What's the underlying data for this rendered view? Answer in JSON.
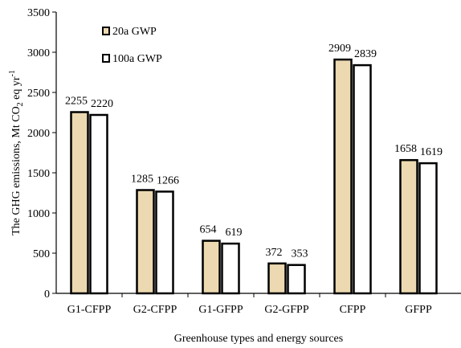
{
  "chart_data": {
    "type": "bar",
    "categories": [
      "G1-CFPP",
      "G2-CFPP",
      "G1-GFPP",
      "G2-GFPP",
      "CFPP",
      "GFPP"
    ],
    "series": [
      {
        "name": "20a GWP",
        "values": [
          2255,
          1285,
          654,
          372,
          2909,
          1658
        ],
        "color": "#ecd9b1"
      },
      {
        "name": "100a GWP",
        "values": [
          2220,
          1266,
          619,
          353,
          2839,
          1619
        ],
        "color": "#ffffff"
      }
    ],
    "data_labels": [
      [
        "2255",
        "1285",
        "654",
        "372",
        "2909",
        "1658"
      ],
      [
        "2220",
        "1266",
        "619",
        "353",
        "2839",
        "1619"
      ]
    ],
    "xlabel": "Greenhouse types and energy sources",
    "ylabel": "The GHG emissions, Mt CO",
    "ylabel_sub": "2",
    "ylabel_tail": " eq yr",
    "ylabel_sup": "-1",
    "ylim": [
      0,
      3500
    ],
    "yticks": [
      0,
      500,
      1000,
      1500,
      2000,
      2500,
      3000,
      3500
    ],
    "legend_position": "top-left",
    "grid": false
  }
}
